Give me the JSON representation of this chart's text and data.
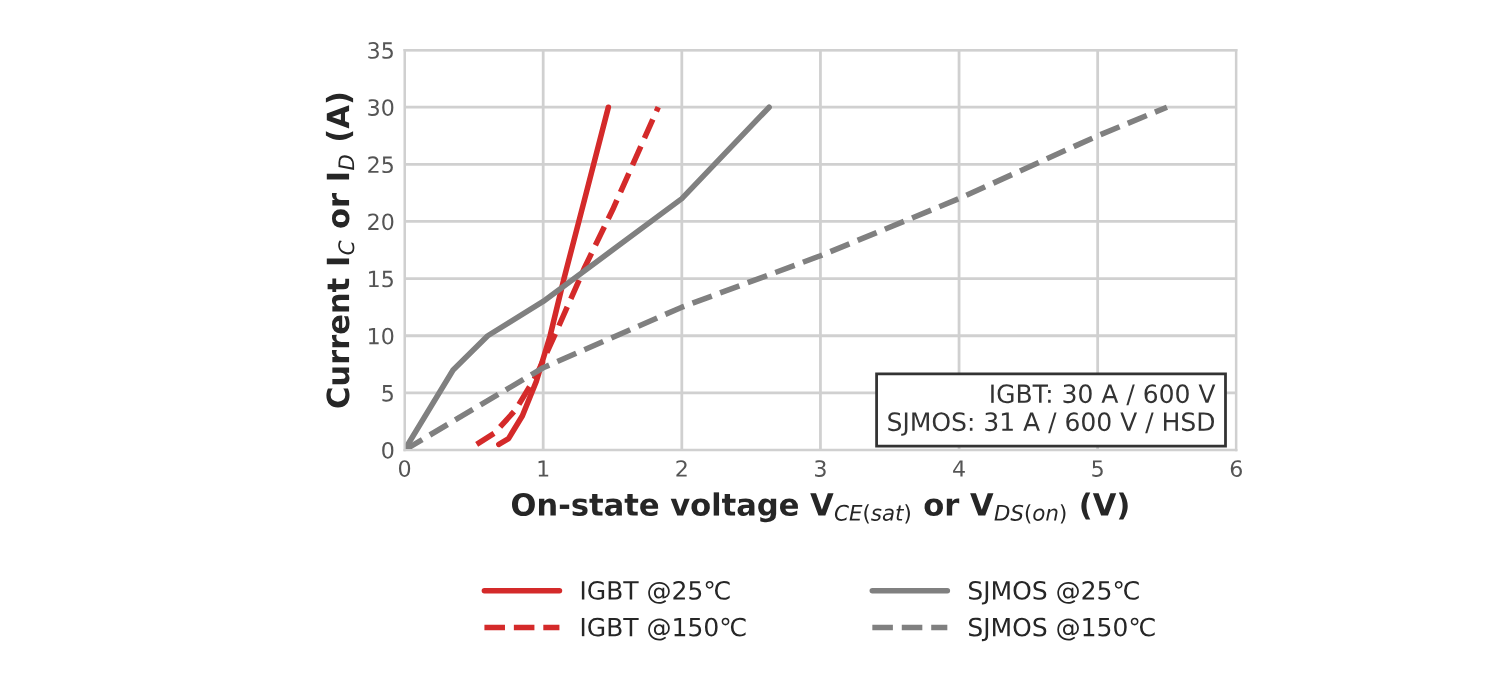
{
  "chart_data": {
    "type": "line",
    "xlabel": "On-state voltage V$_{CE(sat)}$ or V$_{DS(on)}$ (V)",
    "ylabel": "Current I$_{C}$ or I$_{D}$ (A)",
    "xlim": [
      0,
      6
    ],
    "ylim": [
      0,
      35
    ],
    "xticks": [
      0,
      1,
      2,
      3,
      4,
      5,
      6
    ],
    "yticks": [
      0,
      5,
      10,
      15,
      20,
      25,
      30,
      35
    ],
    "grid": true,
    "legend": "bottom",
    "marker": "none",
    "annotations": [
      "IGBT: 30 A / 600 V\nSJMOS: 31 A / 600 V / HSD"
    ],
    "series": [
      {
        "name": "IGBT @25℃",
        "color": "#d42a2a",
        "line_style": "solid",
        "x": [
          0.68,
          0.75,
          0.85,
          0.95,
          1.05,
          1.15,
          1.3,
          1.47
        ],
        "values": [
          0.5,
          1,
          3,
          6,
          10,
          15,
          22,
          30
        ]
      },
      {
        "name": "IGBT @150℃",
        "color": "#d42a2a",
        "line_style": "dashed",
        "x": [
          0.52,
          0.65,
          0.8,
          0.95,
          1.1,
          1.3,
          1.5,
          1.83
        ],
        "values": [
          0.5,
          1.5,
          3.5,
          6.5,
          10.5,
          16,
          21,
          30
        ]
      },
      {
        "name": "SJMOS @25℃",
        "color": "#808080",
        "line_style": "solid",
        "x": [
          0,
          0.2,
          0.35,
          0.6,
          1,
          1.5,
          2,
          2.63
        ],
        "values": [
          0,
          4,
          7,
          10,
          13,
          17.5,
          22,
          30
        ]
      },
      {
        "name": "SJMOS @150℃",
        "color": "#808080",
        "line_style": "dashed",
        "x": [
          0,
          1,
          2,
          3,
          4,
          5,
          5.5
        ],
        "values": [
          0,
          7.2,
          12.5,
          17,
          22,
          27.5,
          30
        ]
      }
    ]
  }
}
